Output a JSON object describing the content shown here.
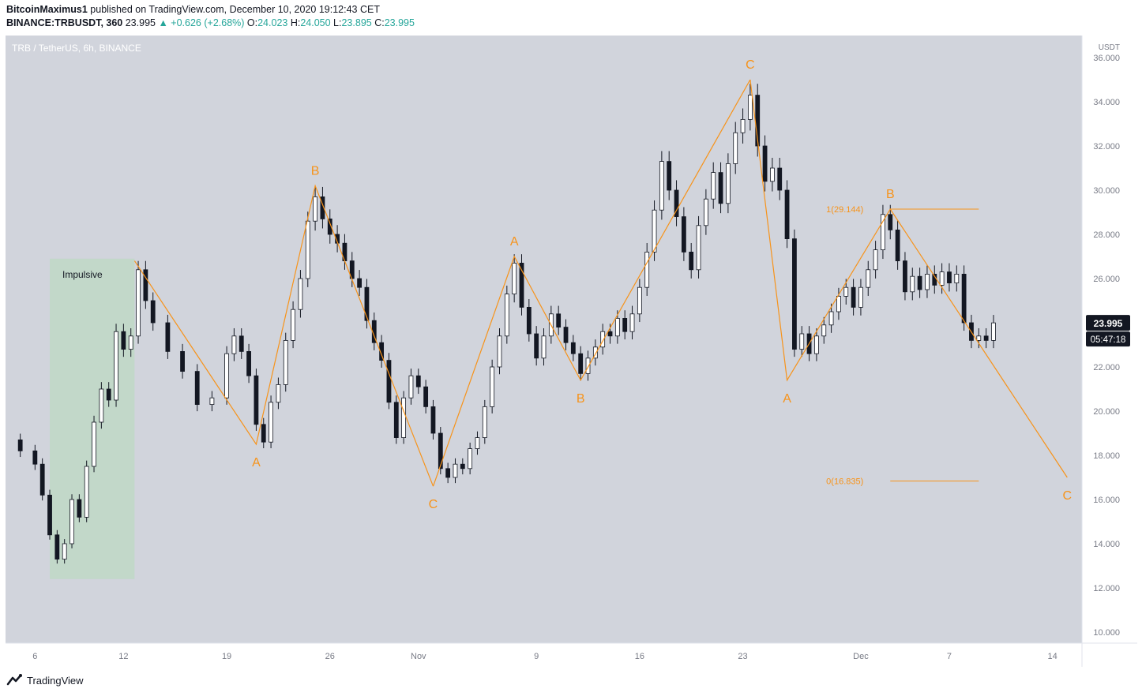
{
  "header": {
    "author": "BitcoinMaximus1",
    "published_text": "published on TradingView.com, December 10, 2020 19:12:43 CET",
    "symbol": "BINANCE:TRBUSDT, 360",
    "last": "23.995",
    "change": "▲ +0.626 (+2.68%)",
    "o_label": "O:",
    "o": "24.023",
    "h_label": "H:",
    "h": "24.050",
    "l_label": "L:",
    "l": "23.895",
    "c_label": "C:",
    "c": "23.995"
  },
  "footer": {
    "brand": "TradingView"
  },
  "colors": {
    "plot_bg": "#d1d4dc",
    "wave": "#f7931a",
    "candle": "#131722",
    "impulse_box": "#c0d8c6",
    "axis_bg": "#ffffff",
    "text": "#787b86"
  },
  "chart_data": {
    "type": "line",
    "title": "TRB / TetherUS, 6h, BINANCE",
    "currency": "USDT",
    "ylim": [
      9.5,
      37
    ],
    "y_ticks": [
      "36.000",
      "34.000",
      "32.000",
      "30.000",
      "28.000",
      "26.000",
      "24.000",
      "22.000",
      "20.000",
      "18.000",
      "16.000",
      "14.000",
      "12.000",
      "10.000"
    ],
    "x_start": "2020-10-04",
    "x_end": "2020-12-16",
    "x_ticks": [
      {
        "date": "2020-10-06",
        "label": "6"
      },
      {
        "date": "2020-10-12",
        "label": "12"
      },
      {
        "date": "2020-10-19",
        "label": "19"
      },
      {
        "date": "2020-10-26",
        "label": "26"
      },
      {
        "date": "2020-11-01",
        "label": "Nov"
      },
      {
        "date": "2020-11-09",
        "label": "9"
      },
      {
        "date": "2020-11-16",
        "label": "16"
      },
      {
        "date": "2020-11-23",
        "label": "23"
      },
      {
        "date": "2020-12-01",
        "label": "Dec"
      },
      {
        "date": "2020-12-07",
        "label": "7"
      },
      {
        "date": "2020-12-14",
        "label": "14"
      }
    ],
    "price_series": {
      "name": "TRBUSDT 6h (approx. closes)",
      "points": [
        [
          "2020-10-04",
          18.7
        ],
        [
          "2020-10-05",
          18.2
        ],
        [
          "2020-10-06",
          17.6
        ],
        [
          "2020-10-06T12",
          16.2
        ],
        [
          "2020-10-07",
          14.4
        ],
        [
          "2020-10-07T12",
          13.3
        ],
        [
          "2020-10-08",
          14.0
        ],
        [
          "2020-10-08T12",
          16.0
        ],
        [
          "2020-10-09",
          15.2
        ],
        [
          "2020-10-09T12",
          17.5
        ],
        [
          "2020-10-10",
          19.5
        ],
        [
          "2020-10-10T12",
          21.0
        ],
        [
          "2020-10-11",
          20.5
        ],
        [
          "2020-10-11T12",
          23.6
        ],
        [
          "2020-10-12",
          22.8
        ],
        [
          "2020-10-12T12",
          23.4
        ],
        [
          "2020-10-13",
          26.4
        ],
        [
          "2020-10-13T12",
          25.0
        ],
        [
          "2020-10-14",
          24.0
        ],
        [
          "2020-10-15",
          22.7
        ],
        [
          "2020-10-16",
          21.8
        ],
        [
          "2020-10-17",
          20.3
        ],
        [
          "2020-10-18",
          20.6
        ],
        [
          "2020-10-19",
          22.6
        ],
        [
          "2020-10-19T12",
          23.4
        ],
        [
          "2020-10-20",
          22.7
        ],
        [
          "2020-10-20T12",
          21.6
        ],
        [
          "2020-10-21",
          19.4
        ],
        [
          "2020-10-21T12",
          18.6
        ],
        [
          "2020-10-22",
          20.4
        ],
        [
          "2020-10-22T12",
          21.2
        ],
        [
          "2020-10-23",
          23.2
        ],
        [
          "2020-10-23T12",
          24.6
        ],
        [
          "2020-10-24",
          26.0
        ],
        [
          "2020-10-24T12",
          28.6
        ],
        [
          "2020-10-25",
          29.7
        ],
        [
          "2020-10-25T12",
          28.7
        ],
        [
          "2020-10-26",
          28.0
        ],
        [
          "2020-10-26T12",
          27.6
        ],
        [
          "2020-10-27",
          26.8
        ],
        [
          "2020-10-27T12",
          26.0
        ],
        [
          "2020-10-28",
          25.6
        ],
        [
          "2020-10-28T12",
          24.1
        ],
        [
          "2020-10-29",
          23.1
        ],
        [
          "2020-10-29T12",
          22.3
        ],
        [
          "2020-10-30",
          20.4
        ],
        [
          "2020-10-30T12",
          18.8
        ],
        [
          "2020-10-31",
          20.6
        ],
        [
          "2020-10-31T12",
          21.6
        ],
        [
          "2020-11-01",
          21.1
        ],
        [
          "2020-11-01T12",
          20.2
        ],
        [
          "2020-11-02",
          19.0
        ],
        [
          "2020-11-02T12",
          17.4
        ],
        [
          "2020-11-03",
          17.0
        ],
        [
          "2020-11-03T12",
          17.6
        ],
        [
          "2020-11-04",
          17.4
        ],
        [
          "2020-11-04T12",
          18.3
        ],
        [
          "2020-11-05",
          18.8
        ],
        [
          "2020-11-05T12",
          20.2
        ],
        [
          "2020-11-06",
          22.0
        ],
        [
          "2020-11-06T12",
          23.4
        ],
        [
          "2020-11-07",
          25.3
        ],
        [
          "2020-11-07T12",
          26.7
        ],
        [
          "2020-11-08",
          24.7
        ],
        [
          "2020-11-08T12",
          23.5
        ],
        [
          "2020-11-09",
          22.4
        ],
        [
          "2020-11-09T12",
          23.4
        ],
        [
          "2020-11-10",
          24.4
        ],
        [
          "2020-11-10T12",
          23.8
        ],
        [
          "2020-11-11",
          23.1
        ],
        [
          "2020-11-11T12",
          22.6
        ],
        [
          "2020-11-12",
          21.7
        ],
        [
          "2020-11-12T12",
          22.4
        ],
        [
          "2020-11-13",
          22.9
        ],
        [
          "2020-11-13T12",
          23.6
        ],
        [
          "2020-11-14",
          23.4
        ],
        [
          "2020-11-14T12",
          24.2
        ],
        [
          "2020-11-15",
          23.6
        ],
        [
          "2020-11-15T12",
          24.4
        ],
        [
          "2020-11-16",
          25.6
        ],
        [
          "2020-11-16T12",
          27.2
        ],
        [
          "2020-11-17",
          29.1
        ],
        [
          "2020-11-17T12",
          31.3
        ],
        [
          "2020-11-18",
          30.0
        ],
        [
          "2020-11-18T12",
          28.8
        ],
        [
          "2020-11-19",
          27.2
        ],
        [
          "2020-11-19T12",
          26.4
        ],
        [
          "2020-11-20",
          28.4
        ],
        [
          "2020-11-20T12",
          29.6
        ],
        [
          "2020-11-21",
          30.8
        ],
        [
          "2020-11-21T12",
          29.4
        ],
        [
          "2020-11-22",
          31.2
        ],
        [
          "2020-11-22T12",
          32.6
        ],
        [
          "2020-11-23",
          33.2
        ],
        [
          "2020-11-23T12",
          34.3
        ],
        [
          "2020-11-24",
          32.0
        ],
        [
          "2020-11-24T12",
          30.4
        ],
        [
          "2020-11-25",
          31.0
        ],
        [
          "2020-11-25T12",
          30.0
        ],
        [
          "2020-11-26",
          27.8
        ],
        [
          "2020-11-26T12",
          22.8
        ],
        [
          "2020-11-27",
          23.5
        ],
        [
          "2020-11-27T12",
          22.6
        ],
        [
          "2020-11-28",
          23.4
        ],
        [
          "2020-11-28T12",
          23.9
        ],
        [
          "2020-11-29",
          24.5
        ],
        [
          "2020-11-29T12",
          25.2
        ],
        [
          "2020-11-30",
          25.6
        ],
        [
          "2020-11-30T12",
          24.7
        ],
        [
          "2020-12-01",
          25.6
        ],
        [
          "2020-12-01T12",
          26.4
        ],
        [
          "2020-12-02",
          27.3
        ],
        [
          "2020-12-02T12",
          28.9
        ],
        [
          "2020-12-03",
          28.2
        ],
        [
          "2020-12-03T12",
          26.8
        ],
        [
          "2020-12-04",
          25.4
        ],
        [
          "2020-12-04T12",
          26.1
        ],
        [
          "2020-12-05",
          25.5
        ],
        [
          "2020-12-05T12",
          26.2
        ],
        [
          "2020-12-06",
          25.7
        ],
        [
          "2020-12-06T12",
          26.3
        ],
        [
          "2020-12-07",
          25.8
        ],
        [
          "2020-12-07T12",
          26.2
        ],
        [
          "2020-12-08",
          24.0
        ],
        [
          "2020-12-08T12",
          23.2
        ],
        [
          "2020-12-09",
          23.4
        ],
        [
          "2020-12-09T12",
          23.2
        ],
        [
          "2020-12-10",
          23.995
        ]
      ]
    },
    "wave_lines": [
      {
        "name": "abc-1",
        "points": [
          [
            "2020-10-12T18",
            26.8
          ],
          [
            "2020-10-21",
            18.5
          ],
          [
            "2020-10-25",
            30.2
          ],
          [
            "2020-11-02",
            16.6
          ]
        ]
      },
      {
        "name": "abc-2",
        "points": [
          [
            "2020-11-02",
            16.6
          ],
          [
            "2020-11-07T12",
            27.0
          ],
          [
            "2020-11-12",
            21.4
          ],
          [
            "2020-11-23T12",
            35.0
          ]
        ]
      },
      {
        "name": "abc-3",
        "points": [
          [
            "2020-11-23T12",
            35.0
          ],
          [
            "2020-11-26",
            21.4
          ],
          [
            "2020-12-03",
            29.144
          ],
          [
            "2020-12-15",
            17.0
          ]
        ]
      }
    ],
    "wave_labels": [
      {
        "text": "A",
        "x": "2020-10-21",
        "y": 18.5,
        "pos": "below"
      },
      {
        "text": "B",
        "x": "2020-10-25",
        "y": 30.2,
        "pos": "above"
      },
      {
        "text": "C",
        "x": "2020-11-02",
        "y": 16.6,
        "pos": "below"
      },
      {
        "text": "A",
        "x": "2020-11-07T12",
        "y": 27.0,
        "pos": "above"
      },
      {
        "text": "B",
        "x": "2020-11-12",
        "y": 21.4,
        "pos": "below"
      },
      {
        "text": "C",
        "x": "2020-11-23T12",
        "y": 35.0,
        "pos": "above"
      },
      {
        "text": "A",
        "x": "2020-11-26",
        "y": 21.4,
        "pos": "below"
      },
      {
        "text": "B",
        "x": "2020-12-03",
        "y": 29.144,
        "pos": "above"
      },
      {
        "text": "C",
        "x": "2020-12-15",
        "y": 17.0,
        "pos": "below"
      }
    ],
    "impulse_box": {
      "label": "Impulsive",
      "x0": "2020-10-07",
      "x1": "2020-10-12T18",
      "y0": 12.4,
      "y1": 26.9
    },
    "fib_levels": [
      {
        "label": "1(29.144)",
        "value": 29.144,
        "x0": "2020-12-03",
        "x1": "2020-12-09"
      },
      {
        "label": "0(16.835)",
        "value": 16.835,
        "x0": "2020-12-03",
        "x1": "2020-12-09"
      }
    ],
    "last_price": {
      "value": 23.995,
      "label": "23.995",
      "countdown": "05:47:18"
    }
  }
}
